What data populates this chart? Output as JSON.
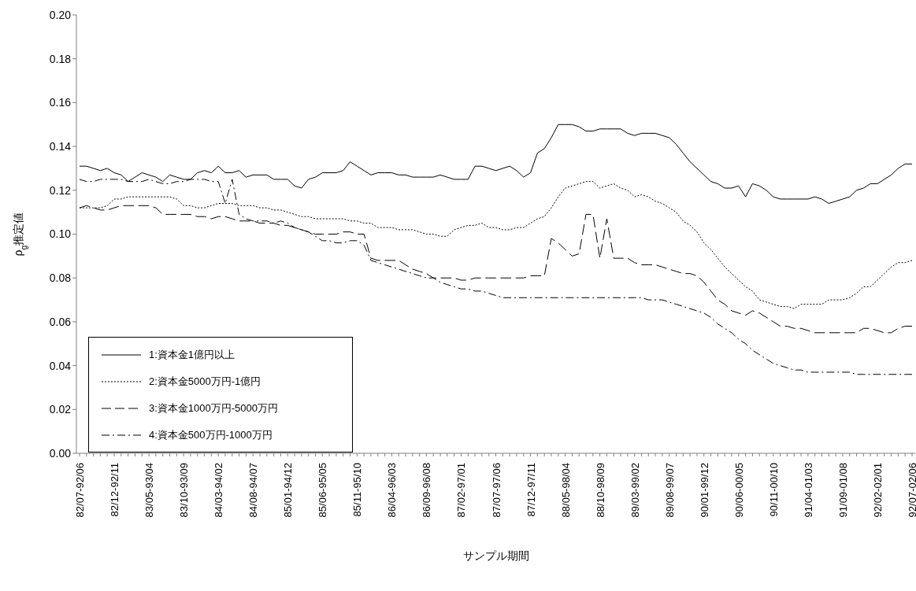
{
  "chart_data": {
    "type": "line",
    "xlabel": "サンプル期間",
    "ylabel": "ρ$_{g}$推定値",
    "categories": [
      "82/07-92/06",
      null,
      null,
      null,
      null,
      "82/12-92/11",
      null,
      null,
      null,
      null,
      "83/05-93/04",
      null,
      null,
      null,
      null,
      "83/10-93/09",
      null,
      null,
      null,
      null,
      "84/03-94/02",
      null,
      null,
      null,
      null,
      "84/08-94/07",
      null,
      null,
      null,
      null,
      "85/01-94/12",
      null,
      null,
      null,
      null,
      "85/06-95/05",
      null,
      null,
      null,
      null,
      "85/11-95/10",
      null,
      null,
      null,
      null,
      "86/04-96/03",
      null,
      null,
      null,
      null,
      "86/09-96/08",
      null,
      null,
      null,
      null,
      "87/02-97/01",
      null,
      null,
      null,
      null,
      "87/07-97/06",
      null,
      null,
      null,
      null,
      "87/12-97/11",
      null,
      null,
      null,
      null,
      "88/05-98/04",
      null,
      null,
      null,
      null,
      "88/10-98/09",
      null,
      null,
      null,
      null,
      "89/03-99/02",
      null,
      null,
      null,
      null,
      "89/08-99/07",
      null,
      null,
      null,
      null,
      "90/01-99/12",
      null,
      null,
      null,
      null,
      "90/06-00/05",
      null,
      null,
      null,
      null,
      "90/11-00/10",
      null,
      null,
      null,
      null,
      "91/04-01/03",
      null,
      null,
      null,
      null,
      "91/09-01/08",
      null,
      null,
      null,
      null,
      "92/02-02/01",
      null,
      null,
      null,
      null,
      "92/07-02/06"
    ],
    "ylim": [
      0,
      0.2
    ],
    "yticks": [
      {
        "value": 0,
        "label": "0.00"
      },
      {
        "value": 0.02,
        "label": "0.02"
      },
      {
        "value": 0.04,
        "label": "0.04"
      },
      {
        "value": 0.06,
        "label": "0.06"
      },
      {
        "value": 0.08,
        "label": "0.08"
      },
      {
        "value": 0.1,
        "label": "0.10"
      },
      {
        "value": 0.12,
        "label": "0.12"
      },
      {
        "value": 0.14,
        "label": "0.14"
      },
      {
        "value": 0.16,
        "label": "0.16"
      },
      {
        "value": 0.18,
        "label": "0.18"
      },
      {
        "value": 0.2,
        "label": "0.20"
      }
    ],
    "grid": false,
    "legend": "bottom left",
    "marker": "none",
    "series": [
      {
        "name": "1:資本金1億円以上",
        "color": "#000000",
        "line_style": "solid",
        "values": [
          0.131,
          0.131,
          0.13,
          0.129,
          0.13,
          0.128,
          0.127,
          0.124,
          0.126,
          0.128,
          0.127,
          0.126,
          0.124,
          0.127,
          0.126,
          0.125,
          0.125,
          0.128,
          0.129,
          0.128,
          0.131,
          0.128,
          0.128,
          0.129,
          0.126,
          0.127,
          0.127,
          0.127,
          0.125,
          0.125,
          0.125,
          0.122,
          0.121,
          0.125,
          0.126,
          0.128,
          0.128,
          0.128,
          0.129,
          0.133,
          0.131,
          0.129,
          0.127,
          0.128,
          0.128,
          0.128,
          0.127,
          0.127,
          0.126,
          0.126,
          0.126,
          0.126,
          0.127,
          0.126,
          0.125,
          0.125,
          0.125,
          0.131,
          0.131,
          0.13,
          0.129,
          0.13,
          0.131,
          0.129,
          0.126,
          0.128,
          0.137,
          0.139,
          0.144,
          0.15,
          0.15,
          0.15,
          0.149,
          0.147,
          0.147,
          0.148,
          0.148,
          0.148,
          0.148,
          0.146,
          0.145,
          0.146,
          0.146,
          0.146,
          0.145,
          0.144,
          0.141,
          0.137,
          0.133,
          0.13,
          0.127,
          0.124,
          0.123,
          0.121,
          0.121,
          0.122,
          0.117,
          0.123,
          0.122,
          0.12,
          0.117,
          0.116,
          0.116,
          0.116,
          0.116,
          0.116,
          0.117,
          0.116,
          0.114,
          0.115,
          0.116,
          0.117,
          0.12,
          0.121,
          0.123,
          0.123,
          0.125,
          0.127,
          0.13,
          0.132,
          0.132
        ]
      },
      {
        "name": "2:資本金5000万円-1億円",
        "color": "#000000",
        "line_style": "dotted",
        "values": [
          0.112,
          0.112,
          0.112,
          0.112,
          0.113,
          0.116,
          0.116,
          0.117,
          0.117,
          0.117,
          0.117,
          0.117,
          0.117,
          0.117,
          0.116,
          0.113,
          0.113,
          0.112,
          0.112,
          0.113,
          0.114,
          0.114,
          0.114,
          0.113,
          0.113,
          0.113,
          0.112,
          0.112,
          0.111,
          0.111,
          0.11,
          0.109,
          0.108,
          0.108,
          0.107,
          0.107,
          0.107,
          0.107,
          0.107,
          0.106,
          0.106,
          0.105,
          0.105,
          0.103,
          0.103,
          0.103,
          0.102,
          0.102,
          0.102,
          0.101,
          0.1,
          0.1,
          0.099,
          0.099,
          0.102,
          0.103,
          0.104,
          0.104,
          0.105,
          0.103,
          0.103,
          0.102,
          0.102,
          0.103,
          0.103,
          0.105,
          0.107,
          0.108,
          0.112,
          0.117,
          0.121,
          0.122,
          0.123,
          0.124,
          0.124,
          0.121,
          0.122,
          0.123,
          0.121,
          0.12,
          0.117,
          0.118,
          0.117,
          0.115,
          0.114,
          0.112,
          0.11,
          0.106,
          0.104,
          0.101,
          0.096,
          0.093,
          0.089,
          0.085,
          0.082,
          0.079,
          0.076,
          0.074,
          0.07,
          0.069,
          0.068,
          0.067,
          0.067,
          0.066,
          0.068,
          0.068,
          0.068,
          0.068,
          0.07,
          0.07,
          0.07,
          0.071,
          0.073,
          0.076,
          0.076,
          0.079,
          0.082,
          0.085,
          0.087,
          0.087,
          0.088
        ]
      },
      {
        "name": "3:資本金1000万円-5000万円",
        "color": "#000000",
        "line_style": "dashed",
        "values": [
          0.112,
          0.113,
          0.112,
          0.111,
          0.111,
          0.112,
          0.113,
          0.113,
          0.113,
          0.113,
          0.113,
          0.112,
          0.109,
          0.109,
          0.109,
          0.109,
          0.109,
          0.108,
          0.108,
          0.107,
          0.108,
          0.108,
          0.107,
          0.106,
          0.106,
          0.106,
          0.105,
          0.105,
          0.105,
          0.104,
          0.104,
          0.103,
          0.102,
          0.101,
          0.1,
          0.1,
          0.1,
          0.1,
          0.101,
          0.101,
          0.1,
          0.1,
          0.089,
          0.088,
          0.088,
          0.088,
          0.088,
          0.086,
          0.084,
          0.083,
          0.082,
          0.08,
          0.08,
          0.08,
          0.08,
          0.079,
          0.079,
          0.08,
          0.08,
          0.08,
          0.08,
          0.08,
          0.08,
          0.08,
          0.08,
          0.081,
          0.081,
          0.081,
          0.098,
          0.096,
          0.093,
          0.09,
          0.091,
          0.109,
          0.109,
          0.089,
          0.107,
          0.089,
          0.089,
          0.089,
          0.087,
          0.086,
          0.086,
          0.086,
          0.085,
          0.084,
          0.083,
          0.082,
          0.082,
          0.081,
          0.078,
          0.074,
          0.07,
          0.068,
          0.065,
          0.064,
          0.063,
          0.065,
          0.064,
          0.062,
          0.06,
          0.058,
          0.058,
          0.057,
          0.057,
          0.056,
          0.055,
          0.055,
          0.055,
          0.055,
          0.055,
          0.055,
          0.055,
          0.057,
          0.057,
          0.056,
          0.055,
          0.055,
          0.057,
          0.058,
          0.058
        ]
      },
      {
        "name": "4:資本金500万円-1000万円",
        "color": "#000000",
        "line_style": "dashdot",
        "values": [
          0.125,
          0.124,
          0.124,
          0.125,
          0.125,
          0.125,
          0.125,
          0.124,
          0.124,
          0.124,
          0.125,
          0.124,
          0.123,
          0.123,
          0.124,
          0.124,
          0.125,
          0.125,
          0.125,
          0.124,
          0.124,
          0.114,
          0.125,
          0.109,
          0.107,
          0.106,
          0.106,
          0.106,
          0.105,
          0.106,
          0.105,
          0.103,
          0.102,
          0.101,
          0.099,
          0.097,
          0.097,
          0.096,
          0.096,
          0.097,
          0.097,
          0.095,
          0.088,
          0.087,
          0.086,
          0.085,
          0.084,
          0.083,
          0.082,
          0.081,
          0.08,
          0.08,
          0.078,
          0.077,
          0.076,
          0.075,
          0.075,
          0.074,
          0.074,
          0.073,
          0.072,
          0.071,
          0.071,
          0.071,
          0.071,
          0.071,
          0.071,
          0.071,
          0.071,
          0.071,
          0.071,
          0.071,
          0.071,
          0.071,
          0.071,
          0.071,
          0.071,
          0.071,
          0.071,
          0.071,
          0.071,
          0.071,
          0.07,
          0.07,
          0.07,
          0.069,
          0.068,
          0.067,
          0.066,
          0.065,
          0.064,
          0.062,
          0.059,
          0.057,
          0.055,
          0.052,
          0.05,
          0.047,
          0.045,
          0.043,
          0.041,
          0.04,
          0.039,
          0.038,
          0.038,
          0.037,
          0.037,
          0.037,
          0.037,
          0.037,
          0.037,
          0.037,
          0.036,
          0.036,
          0.036,
          0.036,
          0.036,
          0.036,
          0.036,
          0.036,
          0.036
        ]
      }
    ]
  }
}
